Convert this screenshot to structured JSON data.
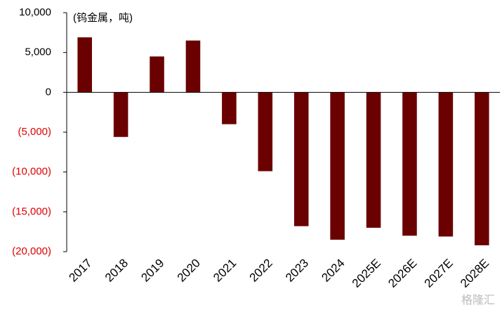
{
  "chart_data": {
    "type": "bar",
    "annotation": "(钨金属，吨)",
    "watermark": "格隆汇",
    "categories": [
      "2017",
      "2018",
      "2019",
      "2020",
      "2021",
      "2022",
      "2023",
      "2024",
      "2025E",
      "2026E",
      "2027E",
      "2028E"
    ],
    "values": [
      6900,
      -5600,
      4500,
      6500,
      -4000,
      -9900,
      -16800,
      -18500,
      -17000,
      -18000,
      -18100,
      -19200
    ],
    "color": "#6b0000",
    "negative_label_color": "#e00000",
    "ylim": [
      -20000,
      10000
    ],
    "yticks": [
      {
        "value": -20000,
        "label": "(20,000)"
      },
      {
        "value": -15000,
        "label": "(15,000)"
      },
      {
        "value": -10000,
        "label": "(10,000)"
      },
      {
        "value": -5000,
        "label": "(5,000)"
      },
      0,
      {
        "value": 5000,
        "label": "5,000"
      },
      {
        "value": 10000,
        "label": "10,000"
      }
    ],
    "grid": false
  }
}
